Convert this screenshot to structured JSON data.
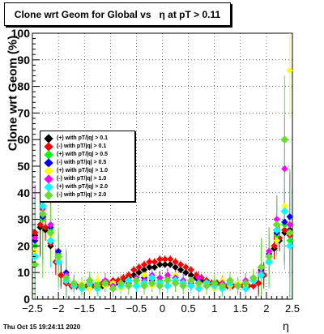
{
  "chart_data": {
    "type": "scatter",
    "title": "Clone wrt Geom for Global vs   η at pT > 0.11",
    "xlabel": "η",
    "ylabel": "Clone wrt Geom (%)",
    "xlim": [
      -2.5,
      2.5
    ],
    "ylim": [
      0,
      100
    ],
    "x_ticks": [
      "−2.5",
      "−2",
      "−1.5",
      "−1",
      "−0.5",
      "0",
      "0.5",
      "1",
      "1.5",
      "2",
      "2.5"
    ],
    "y_ticks": [
      "0",
      "10",
      "20",
      "30",
      "40",
      "50",
      "60",
      "70",
      "80",
      "90",
      "100"
    ],
    "grid": true,
    "legend_position": "left-middle",
    "footer": "Thu Oct 15 19:24:11 2020",
    "series": [
      {
        "name": "(+) with pT/|q| > 0.1",
        "color": "#000000",
        "x": [
          -2.45,
          -2.35,
          -2.25,
          -2.15,
          -2.05,
          -1.95,
          -1.85,
          -1.75,
          -1.65,
          -1.55,
          -1.45,
          -1.35,
          -1.25,
          -1.15,
          -1.05,
          -0.95,
          -0.85,
          -0.75,
          -0.65,
          -0.55,
          -0.45,
          -0.35,
          -0.25,
          -0.15,
          -0.05,
          0.05,
          0.15,
          0.25,
          0.35,
          0.45,
          0.55,
          0.65,
          0.75,
          0.85,
          0.95,
          1.05,
          1.15,
          1.25,
          1.35,
          1.45,
          1.55,
          1.65,
          1.75,
          1.85,
          1.95,
          2.05,
          2.15,
          2.25,
          2.35,
          2.45
        ],
        "y": [
          24,
          27,
          26,
          20,
          14,
          9,
          6,
          5,
          5,
          5,
          5,
          5,
          5,
          5,
          6,
          6,
          6,
          7,
          8,
          9,
          10,
          11,
          12,
          12,
          13,
          13,
          13,
          12,
          11,
          10,
          9,
          8,
          7,
          6,
          6,
          6,
          6,
          5,
          5,
          5,
          5,
          5,
          5,
          6,
          9,
          14,
          19,
          22,
          25,
          26
        ]
      },
      {
        "name": "(-) with pT/|q| > 0.1",
        "color": "#ff0000",
        "x": [
          -2.45,
          -2.35,
          -2.25,
          -2.15,
          -2.05,
          -1.95,
          -1.85,
          -1.75,
          -1.65,
          -1.55,
          -1.45,
          -1.35,
          -1.25,
          -1.15,
          -1.05,
          -0.95,
          -0.85,
          -0.75,
          -0.65,
          -0.55,
          -0.45,
          -0.35,
          -0.25,
          -0.15,
          -0.05,
          0.05,
          0.15,
          0.25,
          0.35,
          0.45,
          0.55,
          0.65,
          0.75,
          0.85,
          0.95,
          1.05,
          1.15,
          1.25,
          1.35,
          1.45,
          1.55,
          1.65,
          1.75,
          1.85,
          1.95,
          2.05,
          2.15,
          2.25,
          2.35,
          2.45
        ],
        "y": [
          25,
          28,
          27,
          21,
          14,
          9,
          6,
          5,
          5,
          5,
          5,
          5,
          5,
          6,
          6,
          7,
          7,
          8,
          9,
          11,
          12,
          13,
          14,
          14,
          15,
          15,
          15,
          14,
          13,
          12,
          11,
          9,
          8,
          7,
          6,
          6,
          6,
          5,
          5,
          5,
          5,
          5,
          5,
          6,
          9,
          14,
          20,
          23,
          26,
          24
        ]
      },
      {
        "name": "(+) with pT/|q| > 0.5",
        "color": "#00ff00",
        "x": [
          -2.45,
          -2.3,
          -2.15,
          -2.0,
          -1.85,
          -1.7,
          -1.55,
          -1.4,
          -1.25,
          -1.1,
          -0.95,
          -0.8,
          -0.65,
          -0.5,
          -0.35,
          -0.2,
          -0.05,
          0.1,
          0.25,
          0.4,
          0.55,
          0.7,
          0.85,
          1.0,
          1.15,
          1.3,
          1.45,
          1.6,
          1.75,
          1.9,
          2.05,
          2.2,
          2.35,
          2.45
        ],
        "y": [
          20,
          30,
          26,
          17,
          9,
          6,
          5,
          5,
          6,
          5,
          6,
          5,
          6,
          7,
          6,
          8,
          7,
          8,
          7,
          6,
          7,
          6,
          6,
          5,
          6,
          5,
          6,
          6,
          7,
          10,
          16,
          24,
          28,
          22
        ]
      },
      {
        "name": "(-) with pT/|q| > 0.5",
        "color": "#0000ff",
        "x": [
          -2.45,
          -2.3,
          -2.15,
          -2.0,
          -1.85,
          -1.7,
          -1.55,
          -1.4,
          -1.25,
          -1.1,
          -0.95,
          -0.8,
          -0.65,
          -0.5,
          -0.35,
          -0.2,
          -0.05,
          0.1,
          0.25,
          0.4,
          0.55,
          0.7,
          0.85,
          1.0,
          1.15,
          1.3,
          1.45,
          1.6,
          1.75,
          1.9,
          2.05,
          2.2,
          2.35,
          2.45
        ],
        "y": [
          22,
          31,
          27,
          18,
          10,
          6,
          5,
          6,
          5,
          6,
          5,
          6,
          7,
          6,
          8,
          7,
          8,
          7,
          8,
          7,
          6,
          7,
          6,
          5,
          6,
          5,
          6,
          5,
          7,
          11,
          17,
          25,
          29,
          31
        ]
      },
      {
        "name": "(+) with pT/|q| > 1.0",
        "color": "#ffff00",
        "x": [
          -2.45,
          -2.3,
          -2.15,
          -2.0,
          -1.85,
          -1.7,
          -1.55,
          -1.4,
          -1.25,
          -1.1,
          -0.95,
          -0.8,
          -0.65,
          -0.5,
          -0.35,
          -0.2,
          -0.05,
          0.1,
          0.25,
          0.4,
          0.55,
          0.7,
          0.85,
          1.0,
          1.15,
          1.3,
          1.45,
          1.6,
          1.75,
          1.9,
          2.05,
          2.2,
          2.35,
          2.45
        ],
        "y": [
          18,
          33,
          24,
          15,
          8,
          5,
          6,
          4,
          7,
          5,
          6,
          4,
          7,
          6,
          9,
          5,
          8,
          7,
          9,
          6,
          7,
          5,
          6,
          4,
          7,
          5,
          6,
          5,
          8,
          9,
          15,
          22,
          35,
          86
        ]
      },
      {
        "name": "(-) with pT/|q| > 1.0",
        "color": "#ff00ff",
        "x": [
          -2.45,
          -2.3,
          -2.15,
          -2.0,
          -1.85,
          -1.7,
          -1.55,
          -1.4,
          -1.25,
          -1.1,
          -0.95,
          -0.8,
          -0.65,
          -0.5,
          -0.35,
          -0.2,
          -0.05,
          0.1,
          0.25,
          0.4,
          0.55,
          0.7,
          0.85,
          1.0,
          1.15,
          1.3,
          1.45,
          1.6,
          1.75,
          1.9,
          2.05,
          2.2,
          2.35,
          2.45
        ],
        "y": [
          23,
          34,
          28,
          16,
          9,
          6,
          5,
          6,
          5,
          7,
          5,
          6,
          6,
          8,
          7,
          9,
          8,
          9,
          8,
          7,
          6,
          8,
          6,
          5,
          6,
          6,
          5,
          7,
          8,
          10,
          18,
          30,
          49,
          28
        ]
      },
      {
        "name": "(+) with pT/|q| > 2.0",
        "color": "#00ffff",
        "x": [
          -2.45,
          -2.3,
          -2.15,
          -2.0,
          -1.85,
          -1.7,
          -1.55,
          -1.4,
          -1.25,
          -1.1,
          -0.95,
          -0.8,
          -0.65,
          -0.5,
          -0.35,
          -0.2,
          -0.05,
          0.1,
          0.25,
          0.4,
          0.55,
          0.7,
          0.85,
          1.0,
          1.15,
          1.3,
          1.45,
          1.6,
          1.75,
          1.9,
          2.05,
          2.2,
          2.35,
          2.45
        ],
        "y": [
          16,
          35,
          22,
          14,
          7,
          5,
          4,
          6,
          4,
          6,
          4,
          5,
          7,
          5,
          6,
          8,
          6,
          5,
          7,
          6,
          5,
          4,
          6,
          5,
          4,
          6,
          5,
          4,
          7,
          9,
          14,
          26,
          33,
          20
        ]
      },
      {
        "name": "(-) with pT/|q| > 2.0",
        "color": "#66dd33",
        "x": [
          -2.45,
          -2.3,
          -2.15,
          -2.0,
          -1.85,
          -1.7,
          -1.55,
          -1.4,
          -1.25,
          -1.1,
          -0.95,
          -0.8,
          -0.65,
          -0.5,
          -0.35,
          -0.2,
          -0.05,
          0.1,
          0.25,
          0.4,
          0.55,
          0.7,
          0.85,
          1.0,
          1.15,
          1.3,
          1.45,
          1.6,
          1.75,
          1.9,
          2.05,
          2.2,
          2.35,
          2.45
        ],
        "y": [
          13,
          32,
          25,
          16,
          8,
          6,
          5,
          7,
          5,
          6,
          4,
          6,
          5,
          7,
          5,
          6,
          5,
          7,
          6,
          5,
          7,
          6,
          5,
          6,
          5,
          7,
          5,
          6,
          8,
          12,
          16,
          28,
          60,
          25
        ]
      }
    ]
  }
}
